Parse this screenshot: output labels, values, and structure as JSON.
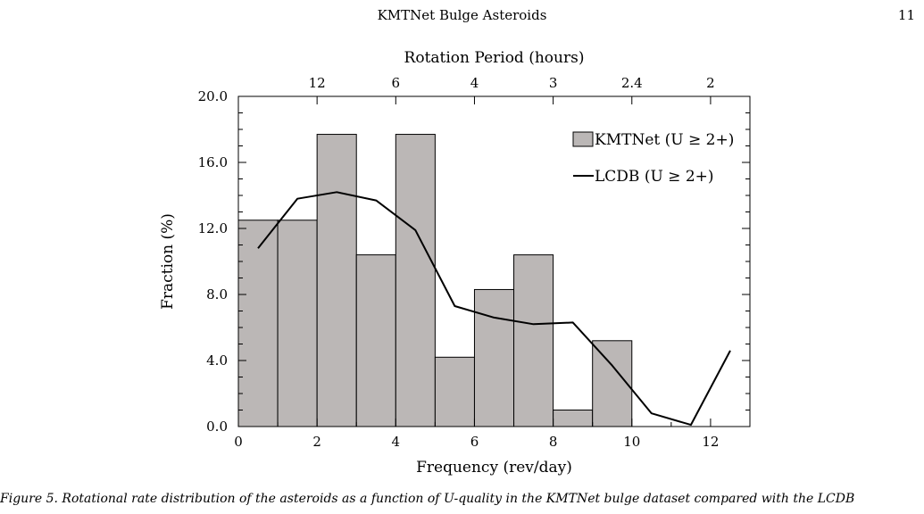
{
  "page": {
    "running_head": "KMTNet Bulge Asteroids",
    "page_number": "11",
    "caption_fragment": "Figure 5. Rotational rate distribution of the asteroids as a function of U-quality in the KMTNet bulge dataset compared with the LCDB"
  },
  "colors": {
    "bar_fill": "#bbb7b6",
    "bar_stroke": "#000000",
    "line": "#000000"
  },
  "chart_data": {
    "type": "bar",
    "title": "",
    "xlabel": "Frequency (rev/day)",
    "ylabel": "Fraction (%)",
    "top_axis_label": "Rotation Period (hours)",
    "xlim": [
      0,
      13
    ],
    "ylim": [
      0,
      20
    ],
    "x_ticks": [
      0,
      2,
      4,
      6,
      8,
      10,
      12
    ],
    "x_tick_labels": [
      "0",
      "2",
      "4",
      "6",
      "8",
      "10",
      "12"
    ],
    "y_ticks": [
      0,
      4,
      8,
      12,
      16,
      20
    ],
    "y_tick_labels": [
      "0.0",
      "4.0",
      "8.0",
      "12.0",
      "16.0",
      "20.0"
    ],
    "top_ticks": [
      {
        "freq": 2,
        "label": "12"
      },
      {
        "freq": 4,
        "label": "6"
      },
      {
        "freq": 6,
        "label": "4"
      },
      {
        "freq": 8,
        "label": "3"
      },
      {
        "freq": 10,
        "label": "2.4"
      },
      {
        "freq": 12,
        "label": "2"
      }
    ],
    "legend_position": "top-right",
    "series": [
      {
        "name": "KMTNet (U ≥ 2+)",
        "kind": "histogram",
        "bin_edges": [
          0,
          1,
          2,
          3,
          4,
          5,
          6,
          7,
          8,
          9,
          10
        ],
        "values": [
          12.5,
          12.5,
          17.7,
          10.4,
          17.7,
          4.2,
          8.3,
          10.4,
          1.0,
          5.2
        ]
      },
      {
        "name": "LCDB (U ≥ 2+)",
        "kind": "line",
        "x": [
          0.5,
          1.5,
          2.5,
          3.5,
          4.5,
          5.5,
          6.5,
          7.5,
          8.5,
          9.5,
          10.5,
          11.5,
          12.5
        ],
        "values": [
          10.8,
          13.8,
          14.2,
          13.7,
          11.9,
          7.3,
          6.6,
          6.2,
          6.3,
          3.7,
          0.8,
          0.1,
          4.6
        ]
      }
    ]
  }
}
